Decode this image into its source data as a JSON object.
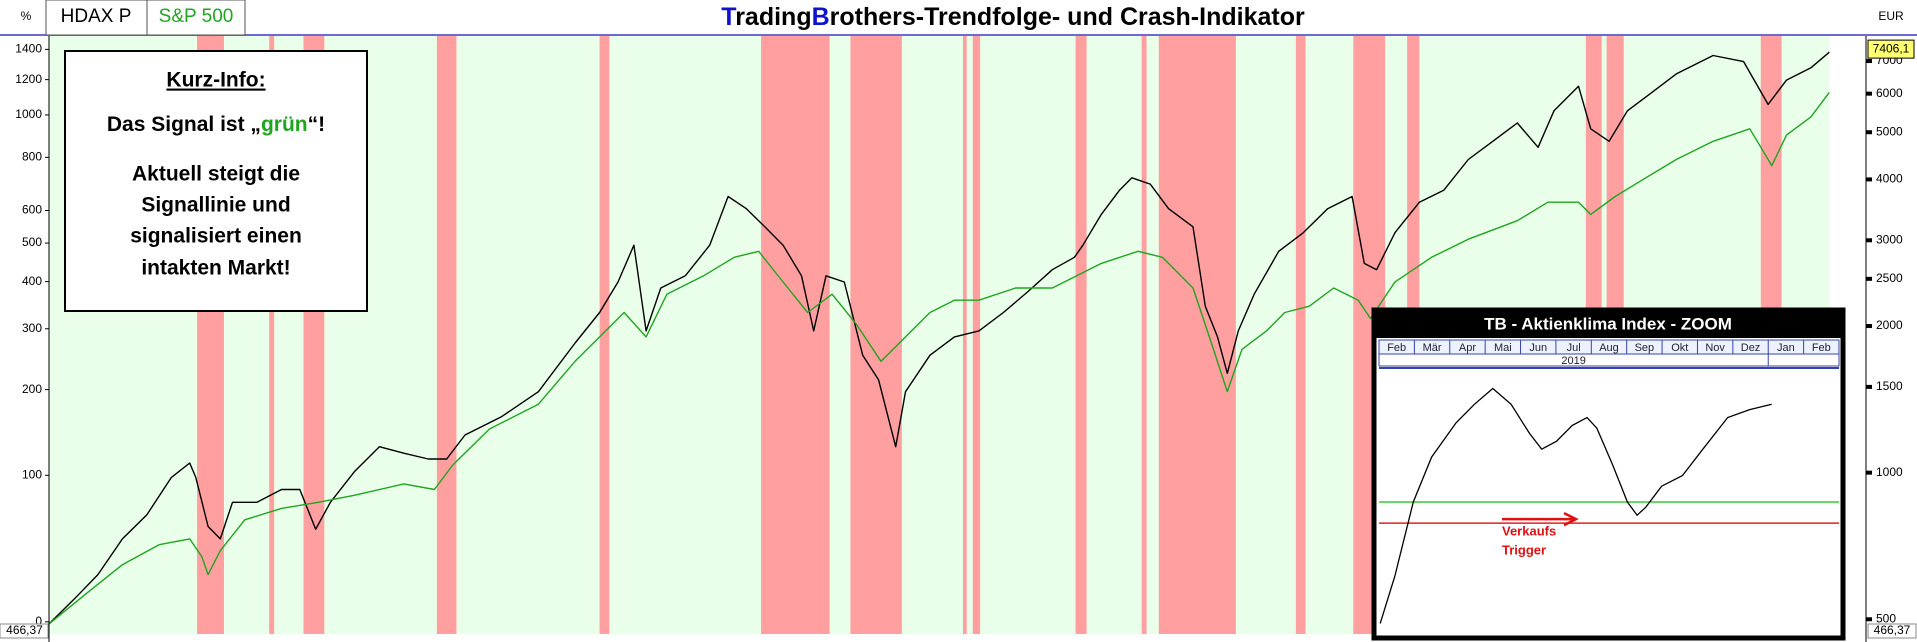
{
  "header": {
    "unit_left": "%",
    "tabs": [
      "HDAX P",
      "S&P 500"
    ],
    "unit_right": "EUR"
  },
  "info": {
    "heading": "Kurz-Info:",
    "signal": [
      "Das Signal ist „",
      "grün",
      "“!"
    ],
    "lines": [
      "Aktuell steigt die",
      "Signallinie und",
      "signalisiert einen",
      "intakten Markt!"
    ]
  },
  "chart_data": [
    {
      "type": "line",
      "title_parts": [
        "T",
        "rading",
        "B",
        "rothers-Trendfolge- und Crash-Indikator"
      ],
      "xlim": [
        0,
        1485
      ],
      "yscale": "log-percent",
      "ylim": [
        -5.6,
        1498
      ],
      "yticks": [
        0,
        100,
        200,
        300,
        400,
        500,
        600,
        800,
        1000,
        1200,
        1400
      ],
      "y2scale": "log",
      "y2lim": [
        466.37,
        7880
      ],
      "y2ticks": [
        500,
        1000,
        1500,
        2000,
        2500,
        3000,
        4000,
        5000,
        6000,
        7000
      ],
      "y2_last": {
        "value": 7406.1,
        "label": "7406,1"
      },
      "y2_bottom": {
        "value": 466.37,
        "label": "466,37"
      },
      "background_color": "#eaffea",
      "background_until": 1455,
      "band_color": "#ff9f9f",
      "bands": [
        [
          121,
          143
        ],
        [
          180,
          184
        ],
        [
          208,
          225
        ],
        [
          317,
          333
        ],
        [
          450,
          458
        ],
        [
          582,
          638
        ],
        [
          655,
          697
        ],
        [
          747,
          750
        ],
        [
          755,
          761
        ],
        [
          839,
          848
        ],
        [
          893,
          897
        ],
        [
          907,
          970
        ],
        [
          1019,
          1027
        ],
        [
          1066,
          1092
        ],
        [
          1110,
          1120
        ],
        [
          1256,
          1269
        ],
        [
          1273,
          1287
        ],
        [
          1399,
          1416
        ]
      ],
      "series": [
        {
          "name": "HDAX P",
          "color": "#000000",
          "x": [
            0,
            20,
            40,
            60,
            80,
            100,
            115,
            120,
            130,
            140,
            150,
            170,
            190,
            205,
            218,
            230,
            250,
            270,
            290,
            310,
            325,
            340,
            370,
            400,
            430,
            450,
            465,
            478,
            488,
            500,
            520,
            540,
            555,
            570,
            585,
            600,
            615,
            625,
            635,
            650,
            665,
            678,
            692,
            700,
            720,
            740,
            760,
            780,
            800,
            820,
            838,
            845,
            860,
            875,
            885,
            900,
            915,
            935,
            945,
            955,
            963,
            972,
            985,
            1005,
            1025,
            1045,
            1065,
            1075,
            1085,
            1100,
            1120,
            1140,
            1160,
            1180,
            1200,
            1217,
            1230,
            1250,
            1260,
            1275,
            1290,
            1310,
            1330,
            1360,
            1385,
            1405,
            1420,
            1440,
            1455
          ],
          "values": [
            -1,
            11,
            25,
            48,
            66,
            98,
            112,
            98,
            57,
            48,
            76,
            76,
            87,
            87,
            55,
            76,
            104,
            129,
            122,
            116,
            116,
            142,
            164,
            197,
            274,
            332,
            399,
            494,
            296,
            385,
            414,
            494,
            648,
            606,
            548,
            494,
            414,
            296,
            414,
            399,
            253,
            214,
            129,
            197,
            253,
            285,
            296,
            332,
            377,
            429,
            461,
            494,
            587,
            671,
            717,
            693,
            606,
            548,
            345,
            285,
            224,
            296,
            371,
            477,
            530,
            606,
            648,
            445,
            429,
            530,
            628,
            671,
            791,
            871,
            959,
            844,
            1022,
            1160,
            930,
            871,
            1022,
            1124,
            1236,
            1357,
            1316,
            1056,
            1197,
            1275,
            1380
          ]
        },
        {
          "name": "S&P 500",
          "color": "#1fa51f",
          "x": [
            0,
            30,
            60,
            90,
            115,
            125,
            130,
            140,
            160,
            190,
            220,
            250,
            290,
            315,
            330,
            360,
            400,
            430,
            450,
            470,
            488,
            505,
            535,
            560,
            580,
            600,
            620,
            640,
            660,
            680,
            695,
            720,
            740,
            760,
            790,
            820,
            840,
            860,
            890,
            910,
            935,
            950,
            963,
            975,
            995,
            1010,
            1030,
            1050,
            1070,
            1080,
            1100,
            1130,
            1160,
            1200,
            1225,
            1250,
            1260,
            1280,
            1305,
            1330,
            1360,
            1390,
            1408,
            1420,
            1440,
            1455
          ],
          "values": [
            -1,
            14,
            31,
            44,
            48,
            36,
            25,
            40,
            62,
            71,
            76,
            82,
            92,
            87,
            110,
            149,
            180,
            243,
            285,
            332,
            285,
            371,
            414,
            461,
            477,
            399,
            332,
            371,
            308,
            243,
            274,
            332,
            358,
            358,
            385,
            385,
            414,
            445,
            477,
            461,
            385,
            274,
            197,
            263,
            296,
            332,
            345,
            385,
            358,
            320,
            399,
            461,
            511,
            567,
            628,
            628,
            587,
            648,
            717,
            791,
            871,
            930,
            765,
            900,
            990,
            1124
          ]
        }
      ]
    },
    {
      "type": "line",
      "title": "TB - Aktienklima Index - ZOOM",
      "categories": [
        "Feb",
        "Mär",
        "Apr",
        "Mai",
        "Jun",
        "Jul",
        "Aug",
        "Sep",
        "Okt",
        "Nov",
        "Dez",
        "Jan",
        "Feb"
      ],
      "year": "2019",
      "xlim": [
        0,
        376
      ],
      "ylim": [
        0,
        100
      ],
      "hlines": [
        {
          "value": 50,
          "color": "#33cc33"
        },
        {
          "value": 42,
          "color": "#e02020"
        }
      ],
      "annotation": [
        "Verkaufs",
        "Trigger"
      ],
      "annotation_color": "#e01010",
      "series": [
        {
          "color": "#000000",
          "x": [
            1,
            13,
            28,
            43,
            63,
            78,
            93,
            108,
            123,
            133,
            145,
            158,
            170,
            178,
            191,
            203,
            211,
            218,
            231,
            248,
            263,
            285,
            303,
            321
          ],
          "values": [
            4,
            22,
            50,
            67,
            80,
            87,
            93,
            87,
            76,
            70,
            73,
            79,
            82,
            78,
            64,
            50,
            45,
            48,
            56,
            60,
            69,
            82,
            85,
            87
          ]
        }
      ]
    }
  ]
}
